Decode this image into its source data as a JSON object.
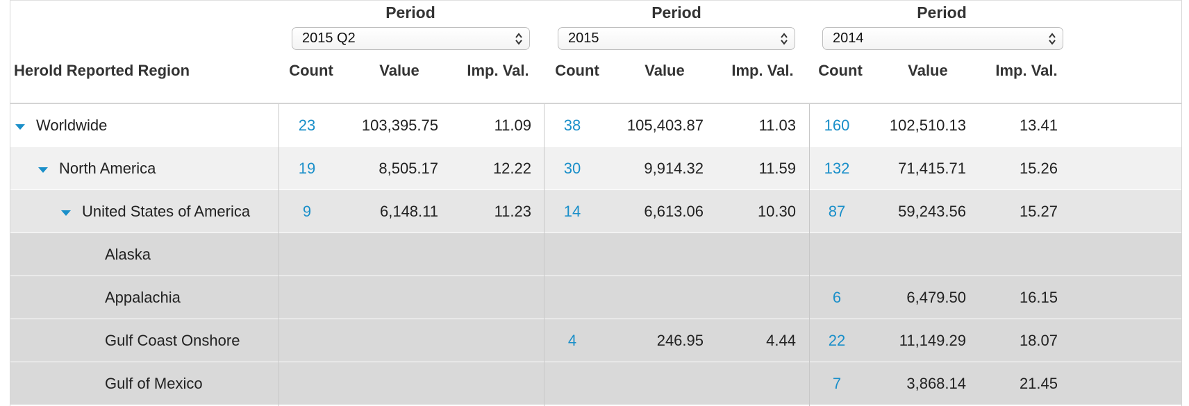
{
  "periods": [
    {
      "heading": "Period",
      "selected": "2015 Q2"
    },
    {
      "heading": "Period",
      "selected": "2015"
    },
    {
      "heading": "Period",
      "selected": "2014"
    }
  ],
  "table": {
    "region_header": "Herold Reported Region",
    "sub_headers": [
      "Count",
      "Value",
      "Imp. Val."
    ],
    "rows": [
      {
        "label": "Worldwide",
        "level": 0,
        "expanded": true,
        "bg": "#ffffff",
        "cells": [
          [
            "23",
            "103,395.75",
            "11.09"
          ],
          [
            "38",
            "105,403.87",
            "11.03"
          ],
          [
            "160",
            "102,510.13",
            "13.41"
          ]
        ]
      },
      {
        "label": "North America",
        "level": 1,
        "expanded": true,
        "bg": "#f1f1f1",
        "cells": [
          [
            "19",
            "8,505.17",
            "12.22"
          ],
          [
            "30",
            "9,914.32",
            "11.59"
          ],
          [
            "132",
            "71,415.71",
            "15.26"
          ]
        ]
      },
      {
        "label": "United States of America",
        "level": 2,
        "expanded": true,
        "bg": "#e6e6e6",
        "cells": [
          [
            "9",
            "6,148.11",
            "11.23"
          ],
          [
            "14",
            "6,613.06",
            "10.30"
          ],
          [
            "87",
            "59,243.56",
            "15.27"
          ]
        ]
      },
      {
        "label": "Alaska",
        "level": 3,
        "expanded": false,
        "bg": "#d9d9d9",
        "cells": [
          [
            "",
            "",
            ""
          ],
          [
            "",
            "",
            ""
          ],
          [
            "",
            "",
            ""
          ]
        ]
      },
      {
        "label": "Appalachia",
        "level": 3,
        "expanded": false,
        "bg": "#d9d9d9",
        "cells": [
          [
            "",
            "",
            ""
          ],
          [
            "",
            "",
            ""
          ],
          [
            "6",
            "6,479.50",
            "16.15"
          ]
        ]
      },
      {
        "label": "Gulf Coast Onshore",
        "level": 3,
        "expanded": false,
        "bg": "#d9d9d9",
        "cells": [
          [
            "",
            "",
            ""
          ],
          [
            "4",
            "246.95",
            "4.44"
          ],
          [
            "22",
            "11,149.29",
            "18.07"
          ]
        ]
      },
      {
        "label": "Gulf of Mexico",
        "level": 3,
        "expanded": false,
        "bg": "#d9d9d9",
        "cells": [
          [
            "",
            "",
            ""
          ],
          [
            "",
            "",
            ""
          ],
          [
            "7",
            "3,868.14",
            "21.45"
          ]
        ]
      }
    ]
  },
  "colors": {
    "link": "#1a8fc9",
    "toggle": "#1a8fc9"
  },
  "icons": {
    "row_toggle": "caret-down-icon",
    "select_arrows": "up-down-chevron-icon"
  }
}
